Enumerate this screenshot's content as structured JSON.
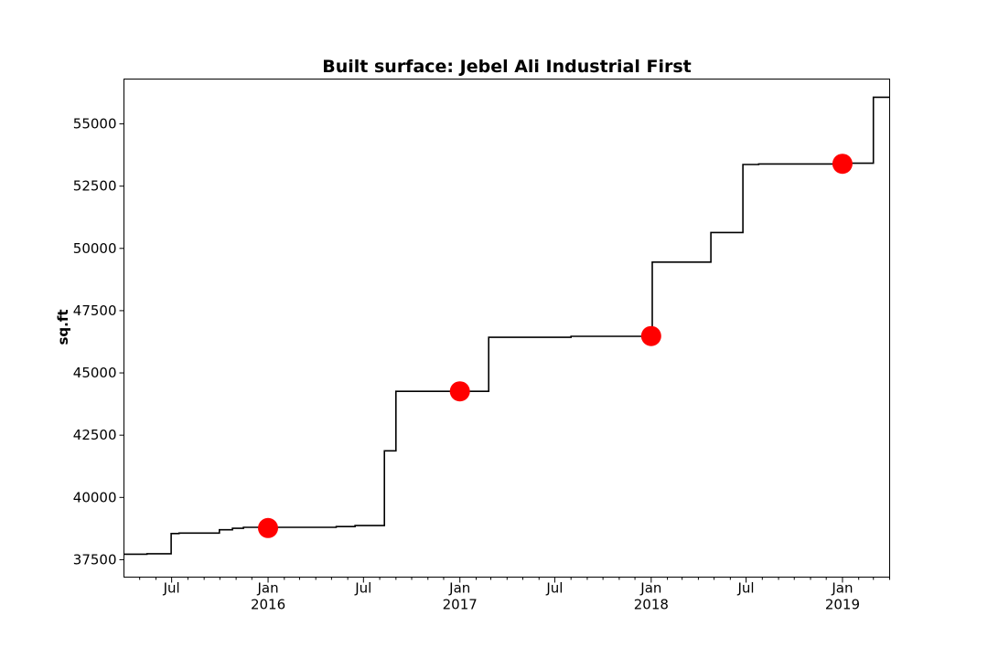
{
  "chart_data": {
    "type": "line",
    "title": "Built surface: Jebel Ali Industrial First",
    "xlabel": "",
    "ylabel": "sq.ft",
    "xlim": [
      "2015-04-01",
      "2019-04-01"
    ],
    "ylim": [
      36800,
      56800
    ],
    "grid": false,
    "y_ticks": [
      37500,
      40000,
      42500,
      45000,
      47500,
      50000,
      52500,
      55000
    ],
    "x_ticks": [
      {
        "date": "2015-07-01",
        "label": "Jul",
        "sublabel": ""
      },
      {
        "date": "2016-01-01",
        "label": "Jan",
        "sublabel": "2016"
      },
      {
        "date": "2016-07-01",
        "label": "Jul",
        "sublabel": ""
      },
      {
        "date": "2017-01-01",
        "label": "Jan",
        "sublabel": "2017"
      },
      {
        "date": "2017-07-01",
        "label": "Jul",
        "sublabel": ""
      },
      {
        "date": "2018-01-01",
        "label": "Jan",
        "sublabel": "2018"
      },
      {
        "date": "2018-07-01",
        "label": "Jul",
        "sublabel": ""
      },
      {
        "date": "2019-01-01",
        "label": "Jan",
        "sublabel": "2019"
      }
    ],
    "minor_x_ticks": [
      "2015-05-01",
      "2015-06-01",
      "2015-08-01",
      "2015-09-01",
      "2015-10-01",
      "2015-11-01",
      "2015-12-01",
      "2016-02-01",
      "2016-03-01",
      "2016-04-01",
      "2016-05-01",
      "2016-06-01",
      "2016-08-01",
      "2016-09-01",
      "2016-10-01",
      "2016-11-01",
      "2016-12-01",
      "2017-02-01",
      "2017-03-01",
      "2017-04-01",
      "2017-05-01",
      "2017-06-01",
      "2017-08-01",
      "2017-09-01",
      "2017-10-01",
      "2017-11-01",
      "2017-12-01",
      "2018-02-01",
      "2018-03-01",
      "2018-04-01",
      "2018-05-01",
      "2018-06-01",
      "2018-08-01",
      "2018-09-01",
      "2018-10-01",
      "2018-11-01",
      "2018-12-01",
      "2019-02-01",
      "2019-03-01",
      "2019-04-01"
    ],
    "series": [
      {
        "style": "step",
        "color": "#000000",
        "points": [
          {
            "x": "2015-04-01",
            "y": 37720
          },
          {
            "x": "2015-05-15",
            "y": 37740
          },
          {
            "x": "2015-06-30",
            "y": 38550
          },
          {
            "x": "2015-07-15",
            "y": 38570
          },
          {
            "x": "2015-09-30",
            "y": 38700
          },
          {
            "x": "2015-10-25",
            "y": 38760
          },
          {
            "x": "2015-11-15",
            "y": 38800
          },
          {
            "x": "2016-05-10",
            "y": 38830
          },
          {
            "x": "2016-06-15",
            "y": 38870
          },
          {
            "x": "2016-08-10",
            "y": 41870
          },
          {
            "x": "2016-09-01",
            "y": 44260
          },
          {
            "x": "2017-02-25",
            "y": 46430
          },
          {
            "x": "2017-08-01",
            "y": 46470
          },
          {
            "x": "2018-01-03",
            "y": 49450
          },
          {
            "x": "2018-04-25",
            "y": 50640
          },
          {
            "x": "2018-06-25",
            "y": 53370
          },
          {
            "x": "2018-07-25",
            "y": 53390
          },
          {
            "x": "2018-12-15",
            "y": 53420
          },
          {
            "x": "2019-03-01",
            "y": 56070
          },
          {
            "x": "2019-04-01",
            "y": 56070
          }
        ]
      },
      {
        "style": "markers",
        "color": "#ff0000",
        "points": [
          {
            "x": "2016-01-01",
            "y": 38770
          },
          {
            "x": "2017-01-01",
            "y": 44260
          },
          {
            "x": "2018-01-01",
            "y": 46480
          },
          {
            "x": "2019-01-01",
            "y": 53400
          }
        ]
      }
    ]
  }
}
